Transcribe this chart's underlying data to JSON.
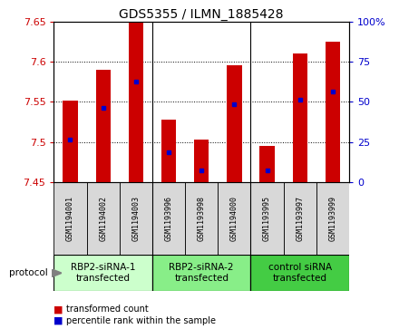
{
  "title": "GDS5355 / ILMN_1885428",
  "samples": [
    "GSM1194001",
    "GSM1194002",
    "GSM1194003",
    "GSM1193996",
    "GSM1193998",
    "GSM1194000",
    "GSM1193995",
    "GSM1193997",
    "GSM1193999"
  ],
  "bar_tops": [
    7.552,
    7.59,
    7.65,
    7.528,
    7.503,
    7.595,
    7.495,
    7.61,
    7.625
  ],
  "bar_bottom": 7.45,
  "blue_values": [
    7.503,
    7.543,
    7.575,
    7.487,
    7.465,
    7.547,
    7.465,
    7.553,
    7.563
  ],
  "ylim": [
    7.45,
    7.65
  ],
  "yticks": [
    7.45,
    7.5,
    7.55,
    7.6,
    7.65
  ],
  "right_yticks": [
    0,
    25,
    50,
    75,
    100
  ],
  "right_ylabels": [
    "0",
    "25",
    "50",
    "75",
    "100%"
  ],
  "bar_color": "#cc0000",
  "blue_color": "#0000cc",
  "groups": [
    {
      "label": "RBP2-siRNA-1\ntransfected",
      "start": 0,
      "end": 3
    },
    {
      "label": "RBP2-siRNA-2\ntransfected",
      "start": 3,
      "end": 6
    },
    {
      "label": "control siRNA\ntransfected",
      "start": 6,
      "end": 9
    }
  ],
  "group_colors": [
    "#ccffcc",
    "#88ee88",
    "#44cc44"
  ],
  "sample_bg": "#d8d8d8",
  "plot_bg": "#ffffff",
  "grid_color": "#000000"
}
